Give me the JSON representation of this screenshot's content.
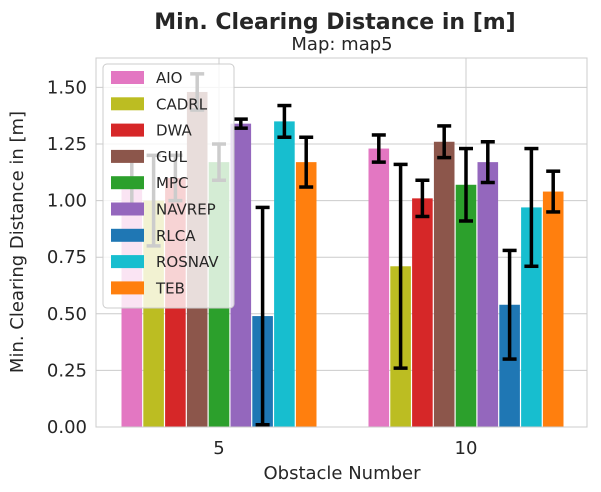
{
  "chart_data": {
    "type": "bar",
    "title": "Min. Clearing Distance in [m]",
    "subtitle": "Map: map5",
    "xlabel": "Obstacle Number",
    "ylabel": "Min. Clearing Distance in [m]",
    "categories": [
      "5",
      "10"
    ],
    "ylim": [
      0,
      1.63
    ],
    "yticks": [
      "0.00",
      "0.25",
      "0.50",
      "0.75",
      "1.00",
      "1.25",
      "1.50"
    ],
    "grid": true,
    "legend_position": "top-left",
    "series": [
      {
        "name": "AIO",
        "color": "#e377c2",
        "values": [
          1.07,
          1.23
        ],
        "err": [
          0.11,
          0.06
        ]
      },
      {
        "name": "CADRL",
        "color": "#bcbd22",
        "values": [
          1.0,
          0.71
        ],
        "err": [
          0.2,
          0.45
        ]
      },
      {
        "name": "DWA",
        "color": "#d62728",
        "values": [
          1.1,
          1.01
        ],
        "err": [
          0.1,
          0.08
        ]
      },
      {
        "name": "GUL",
        "color": "#8c564b",
        "values": [
          1.48,
          1.26
        ],
        "err": [
          0.08,
          0.07
        ]
      },
      {
        "name": "MPC",
        "color": "#2ca02c",
        "values": [
          1.17,
          1.07
        ],
        "err": [
          0.08,
          0.16
        ]
      },
      {
        "name": "NAVREP",
        "color": "#9467bd",
        "values": [
          1.34,
          1.17
        ],
        "err": [
          0.02,
          0.09
        ]
      },
      {
        "name": "RLCA",
        "color": "#1f77b4",
        "values": [
          0.49,
          0.54
        ],
        "err": [
          0.48,
          0.24
        ]
      },
      {
        "name": "ROSNAV",
        "color": "#17becf",
        "values": [
          1.35,
          0.97
        ],
        "err": [
          0.07,
          0.26
        ]
      },
      {
        "name": "TEB",
        "color": "#ff7f0e",
        "values": [
          1.17,
          1.04
        ],
        "err": [
          0.11,
          0.09
        ]
      }
    ]
  }
}
